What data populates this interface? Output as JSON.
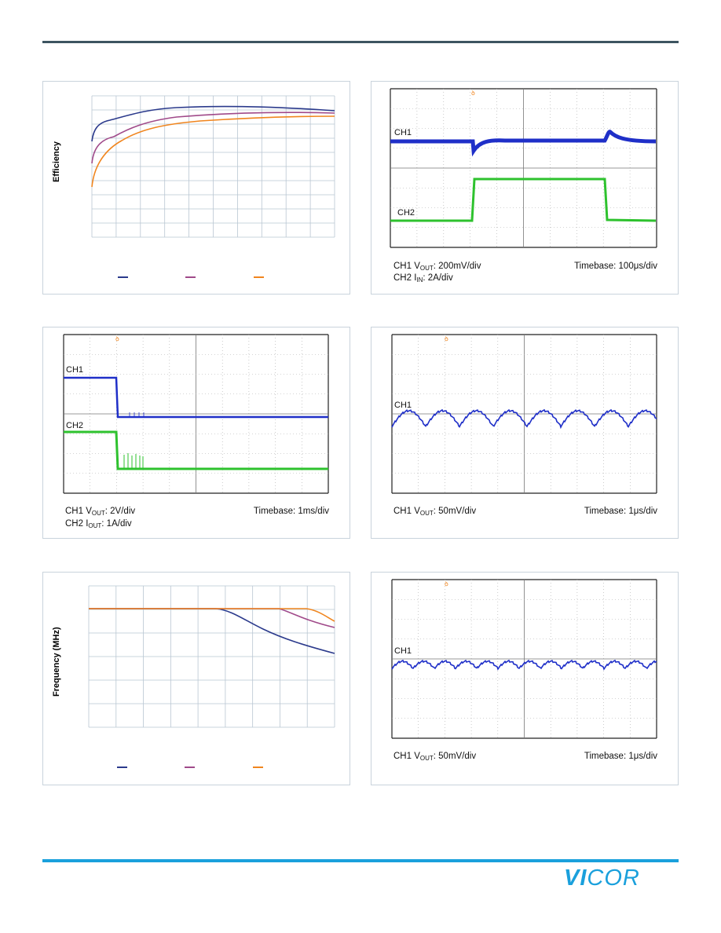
{
  "charts": {
    "efficiency": {
      "ylabel": "Efficiency",
      "legend_colors": [
        "#2b3a8c",
        "#a04a8a",
        "#f0851e"
      ]
    },
    "load_step": {
      "ch1": "CH1",
      "ch2": "CH2",
      "cap_left_1_pre": "CH1 V",
      "cap_left_1_sub": "OUT",
      "cap_left_1_post": ": 200mV/div",
      "cap_left_2_pre": "CH2 I",
      "cap_left_2_sub": "IN",
      "cap_left_2_post": ": 2A/div",
      "timebase": "Timebase: 100μs/div"
    },
    "short_circuit": {
      "ch1": "CH1",
      "ch2": "CH2",
      "cap_left_1_pre": "CH1 V",
      "cap_left_1_sub": "OUT",
      "cap_left_1_post": ": 2V/div",
      "cap_left_2_pre": "CH2 I",
      "cap_left_2_sub": "OUT",
      "cap_left_2_post": ": 1A/div",
      "timebase": "Timebase: 1ms/div"
    },
    "ripple_1": {
      "ch1": "CH1",
      "cap_left_1_pre": "CH1 V",
      "cap_left_1_sub": "OUT",
      "cap_left_1_post": ": 50mV/div",
      "timebase": "Timebase: 1μs/div"
    },
    "frequency": {
      "ylabel": "Frequency (MHz)",
      "legend_colors": [
        "#2b3a8c",
        "#a04a8a",
        "#f0851e"
      ]
    },
    "ripple_2": {
      "ch1": "CH1",
      "cap_left_1_pre": "CH1 V",
      "cap_left_1_sub": "OUT",
      "cap_left_1_post": ": 50mV/div",
      "timebase": "Timebase: 1μs/div"
    }
  },
  "colors": {
    "scope_blue": "#1f2fc8",
    "scope_green": "#2ec22e",
    "grid": "#b9c6d2",
    "brand": "#1aa0dc"
  },
  "logo": {
    "brand": "VICOR"
  }
}
